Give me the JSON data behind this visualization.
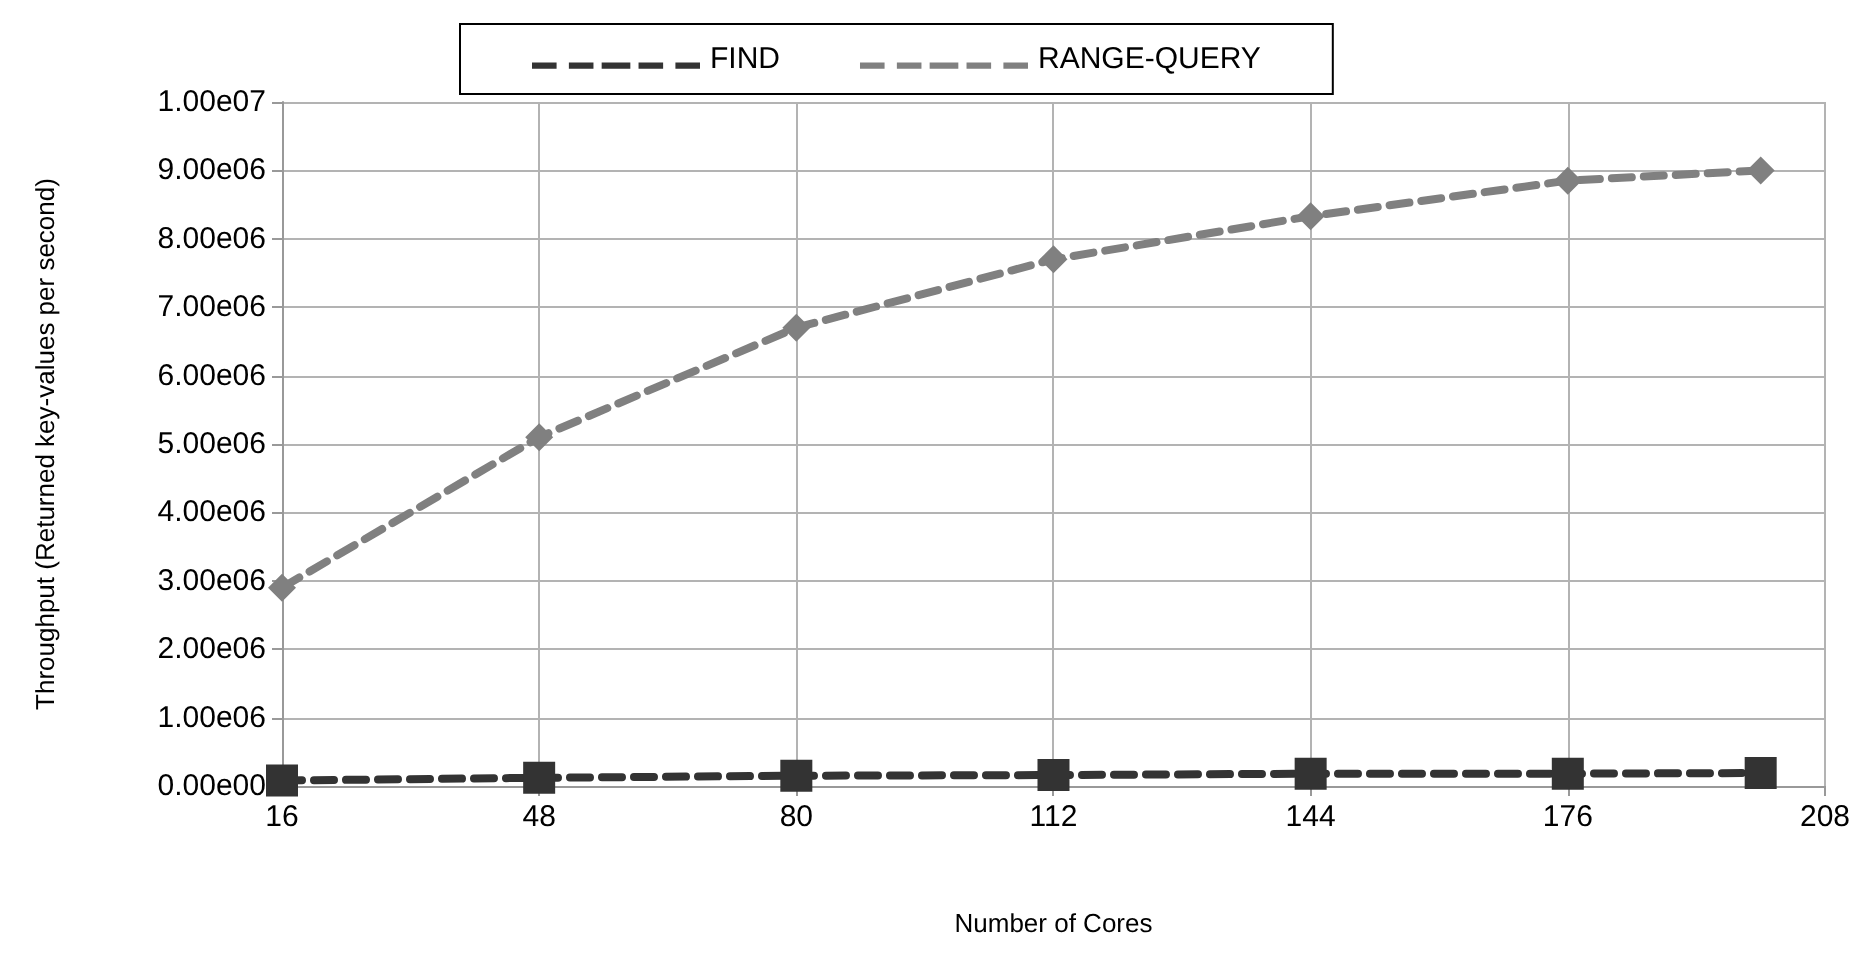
{
  "chart_data": {
    "type": "line",
    "xlabel": "Number of Cores",
    "ylabel": "Throughput (Returned key-values per second)",
    "xlim": [
      16,
      208
    ],
    "xticks": [
      16,
      48,
      80,
      112,
      144,
      176,
      208
    ],
    "ylim": [
      0,
      10000000
    ],
    "yticks": [
      {
        "value": 0,
        "label": "0.00e00"
      },
      {
        "value": 1000000,
        "label": "1.00e06"
      },
      {
        "value": 2000000,
        "label": "2.00e06"
      },
      {
        "value": 3000000,
        "label": "3.00e06"
      },
      {
        "value": 4000000,
        "label": "4.00e06"
      },
      {
        "value": 5000000,
        "label": "5.00e06"
      },
      {
        "value": 6000000,
        "label": "6.00e06"
      },
      {
        "value": 7000000,
        "label": "7.00e06"
      },
      {
        "value": 8000000,
        "label": "8.00e06"
      },
      {
        "value": 9000000,
        "label": "9.00e06"
      },
      {
        "value": 10000000,
        "label": "1.00e07"
      }
    ],
    "x": [
      16,
      48,
      80,
      112,
      144,
      176,
      200
    ],
    "grid": true,
    "legend": "top left",
    "series": [
      {
        "name": "FIND",
        "color": "#333333",
        "marker": "square",
        "line_style": "dashed",
        "values": [
          80000,
          120000,
          150000,
          160000,
          180000,
          180000,
          190000
        ]
      },
      {
        "name": "RANGE-QUERY",
        "color": "#808080",
        "marker": "diamond",
        "line_style": "dashed",
        "values": [
          2900000,
          5100000,
          6700000,
          7700000,
          8330000,
          8850000,
          9000000
        ]
      }
    ]
  }
}
